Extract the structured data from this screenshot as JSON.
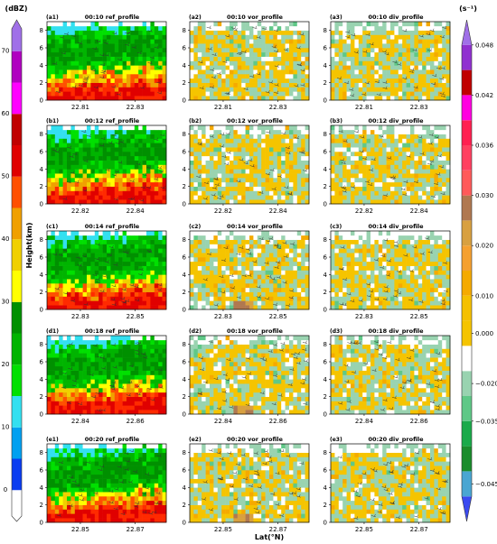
{
  "figure": {
    "ylabel": "Height(km)",
    "xlabel": "Lat(°N)",
    "left_colorbar": {
      "unit": "(dBZ)",
      "ticks": [
        "0",
        "10",
        "20",
        "30",
        "40",
        "50",
        "60",
        "70"
      ],
      "colors": [
        "#ffffff",
        "#0a3cf0",
        "#00a0f0",
        "#33e0f0",
        "#00e000",
        "#00b400",
        "#009000",
        "#ffff00",
        "#f0d000",
        "#f0a000",
        "#ff5000",
        "#e00000",
        "#c00000",
        "#ff00ff",
        "#b000c0",
        "#a070e8"
      ]
    },
    "right_colorbar": {
      "unit": "(s⁻¹)",
      "ticks": [
        "−0.045",
        "−0.035",
        "−0.020",
        "0.000",
        "0.010",
        "0.020",
        "0.030",
        "0.036",
        "0.042",
        "0.048"
      ],
      "colors": [
        "#3a4af0",
        "#4aa6d2",
        "#1a8c2c",
        "#1aaa4a",
        "#5fc887",
        "#99d3b0",
        "#ffffff",
        "#f5c400",
        "#f5c000",
        "#f5aa00",
        "#f5a030",
        "#d8a040",
        "#b07850",
        "#ff5a5a",
        "#ff4060",
        "#ff2050",
        "#ff00e0",
        "#c00000",
        "#9030d0",
        "#a070e8"
      ]
    }
  },
  "chart_data": [
    {
      "type": "heatmap",
      "panel": "(a1)",
      "title": "00:10 ref_profile",
      "x_ticks": [
        "22.81",
        "22.83"
      ],
      "y_ticks": [
        "0",
        "2",
        "4",
        "6",
        "8"
      ],
      "field": "reflectivity",
      "ylim": [
        0,
        9
      ]
    },
    {
      "type": "heatmap",
      "panel": "(a2)",
      "title": "00:10 vor_profile",
      "x_ticks": [
        "22.81",
        "22.83"
      ],
      "y_ticks": [
        "0",
        "2",
        "4",
        "6",
        "8"
      ],
      "field": "vorticity",
      "ylim": [
        0,
        9
      ]
    },
    {
      "type": "heatmap",
      "panel": "(a3)",
      "title": "00:10 div_profile",
      "x_ticks": [
        "22.81",
        "22.83"
      ],
      "y_ticks": [
        "0",
        "2",
        "4",
        "6",
        "8"
      ],
      "field": "divergence",
      "ylim": [
        0,
        9
      ]
    },
    {
      "type": "heatmap",
      "panel": "(b1)",
      "title": "00:12 ref_profile",
      "x_ticks": [
        "22.82",
        "22.84"
      ],
      "y_ticks": [
        "0",
        "2",
        "4",
        "6",
        "8"
      ],
      "field": "reflectivity",
      "ylim": [
        0,
        9
      ]
    },
    {
      "type": "heatmap",
      "panel": "(b2)",
      "title": "00:12 vor_profile",
      "x_ticks": [
        "22.82",
        "22.84"
      ],
      "y_ticks": [
        "0",
        "2",
        "4",
        "6",
        "8"
      ],
      "field": "vorticity",
      "ylim": [
        0,
        9
      ]
    },
    {
      "type": "heatmap",
      "panel": "(b3)",
      "title": "00:12 div_profile",
      "x_ticks": [
        "22.82",
        "22.84"
      ],
      "y_ticks": [
        "0",
        "2",
        "4",
        "6",
        "8"
      ],
      "field": "divergence",
      "ylim": [
        0,
        9
      ]
    },
    {
      "type": "heatmap",
      "panel": "(c1)",
      "title": "00:14 ref_profile",
      "x_ticks": [
        "22.83",
        "22.85"
      ],
      "y_ticks": [
        "0",
        "2",
        "4",
        "6",
        "8"
      ],
      "field": "reflectivity",
      "ylim": [
        0,
        9
      ]
    },
    {
      "type": "heatmap",
      "panel": "(c2)",
      "title": "00:14 vor_profile",
      "x_ticks": [
        "22.83",
        "22.85"
      ],
      "y_ticks": [
        "0",
        "2",
        "4",
        "6",
        "8"
      ],
      "field": "vorticity",
      "ylim": [
        0,
        9
      ]
    },
    {
      "type": "heatmap",
      "panel": "(c3)",
      "title": "00:14 div_profile",
      "x_ticks": [
        "22.83",
        "22.85"
      ],
      "y_ticks": [
        "0",
        "2",
        "4",
        "6",
        "8"
      ],
      "field": "divergence",
      "ylim": [
        0,
        9
      ]
    },
    {
      "type": "heatmap",
      "panel": "(d1)",
      "title": "00:18 ref_profile",
      "x_ticks": [
        "22.84",
        "22.86"
      ],
      "y_ticks": [
        "0",
        "2",
        "4",
        "6",
        "8"
      ],
      "field": "reflectivity",
      "ylim": [
        0,
        9
      ]
    },
    {
      "type": "heatmap",
      "panel": "(d2)",
      "title": "00:18 vor_profile",
      "x_ticks": [
        "22.84",
        "22.86"
      ],
      "y_ticks": [
        "0",
        "2",
        "4",
        "6",
        "8"
      ],
      "field": "vorticity",
      "ylim": [
        0,
        9
      ]
    },
    {
      "type": "heatmap",
      "panel": "(d3)",
      "title": "00:18 div_profile",
      "x_ticks": [
        "22.84",
        "22.86"
      ],
      "y_ticks": [
        "0",
        "2",
        "4",
        "6",
        "8"
      ],
      "field": "divergence",
      "ylim": [
        0,
        9
      ]
    },
    {
      "type": "heatmap",
      "panel": "(e1)",
      "title": "00:20 ref_profile",
      "x_ticks": [
        "22.85",
        "22.87"
      ],
      "y_ticks": [
        "0",
        "2",
        "4",
        "6",
        "8"
      ],
      "field": "reflectivity",
      "ylim": [
        0,
        9
      ]
    },
    {
      "type": "heatmap",
      "panel": "(e2)",
      "title": "00:20 vor_profile",
      "x_ticks": [
        "22.85",
        "22.87"
      ],
      "y_ticks": [
        "0",
        "2",
        "4",
        "6",
        "8"
      ],
      "field": "vorticity",
      "ylim": [
        0,
        9
      ]
    },
    {
      "type": "heatmap",
      "panel": "(e3)",
      "title": "00:20 div_profile",
      "x_ticks": [
        "22.85",
        "22.87"
      ],
      "y_ticks": [
        "0",
        "2",
        "4",
        "6",
        "8"
      ],
      "field": "divergence",
      "ylim": [
        0,
        9
      ]
    }
  ]
}
